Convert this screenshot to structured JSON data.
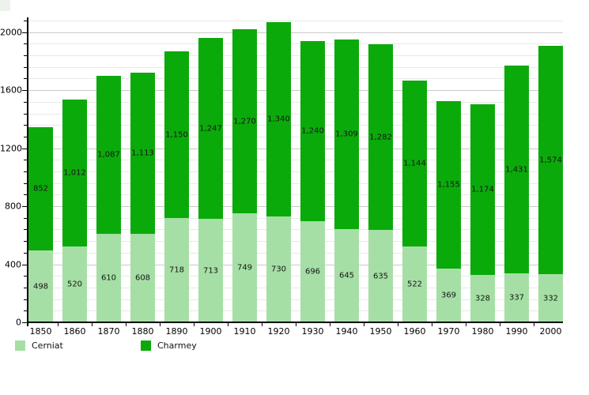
{
  "chart_data": {
    "type": "bar",
    "stacked": true,
    "title": "",
    "xlabel": "",
    "ylabel": "",
    "grid": true,
    "legend_position": "bottom-left",
    "ylim": [
      0,
      2080
    ],
    "minor_tick_step": 80,
    "yticks": [
      {
        "value": 0,
        "label": "0"
      },
      {
        "value": 400,
        "label": "400"
      },
      {
        "value": 800,
        "label": "800"
      },
      {
        "value": 1200,
        "label": "1200"
      },
      {
        "value": 1600,
        "label": "1600"
      },
      {
        "value": 2000,
        "label": "2000"
      }
    ],
    "categories": [
      "1850",
      "1860",
      "1870",
      "1880",
      "1890",
      "1900",
      "1910",
      "1920",
      "1930",
      "1940",
      "1950",
      "1960",
      "1970",
      "1980",
      "1990",
      "2000"
    ],
    "series": [
      {
        "name": "Cerniat",
        "color": "#a5dfa5",
        "values": [
          498,
          520,
          610,
          608,
          718,
          713,
          749,
          730,
          696,
          645,
          635,
          522,
          369,
          328,
          337,
          332
        ],
        "labels": [
          "498",
          "520",
          "610",
          "608",
          "718",
          "713",
          "749",
          "730",
          "696",
          "645",
          "635",
          "522",
          "369",
          "328",
          "337",
          "332"
        ]
      },
      {
        "name": "Charmey",
        "color": "#0baa0b",
        "values": [
          852,
          1012,
          1087,
          1113,
          1150,
          1247,
          1270,
          1340,
          1240,
          1309,
          1282,
          1144,
          1155,
          1174,
          1431,
          1574
        ],
        "labels": [
          "852",
          "1,012",
          "1,087",
          "1,113",
          "1,150",
          "1,247",
          "1,270",
          "1,340",
          "1,240",
          "1,309",
          "1,282",
          "1,144",
          "1,155",
          "1,174",
          "1,431",
          "1,574"
        ]
      }
    ]
  },
  "legend": {
    "items": [
      {
        "label": "Cerniat"
      },
      {
        "label": "Charmey"
      }
    ]
  }
}
